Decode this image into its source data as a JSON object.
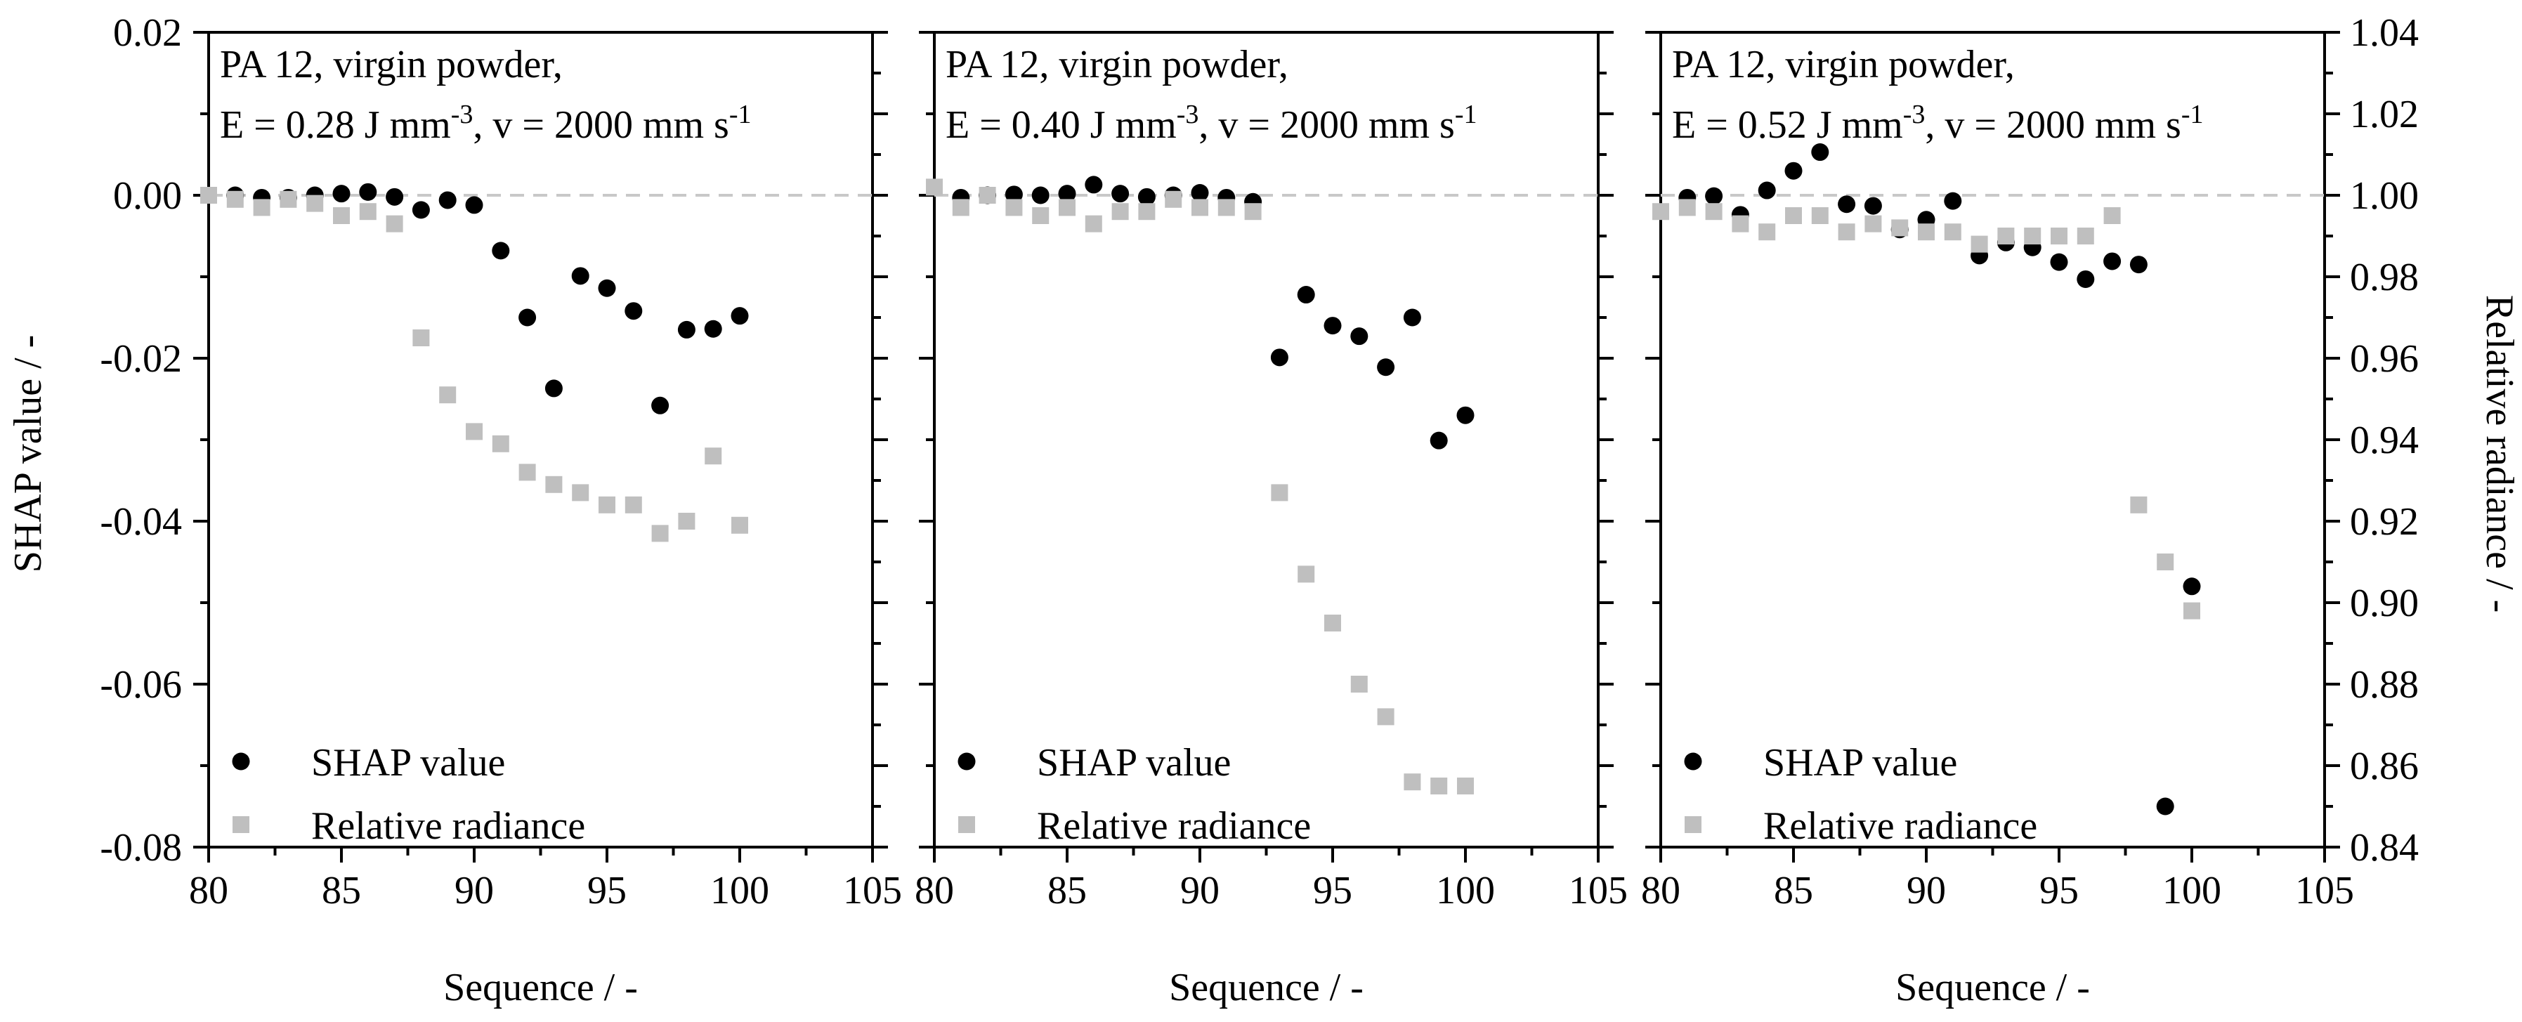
{
  "figure": {
    "ylabel_left": "SHAP value / -",
    "ylabel_right": "Relative radiance / -",
    "legend": {
      "shap": "SHAP value",
      "radiance": "Relative radiance"
    },
    "colors": {
      "shap": "#000000",
      "radiance": "#bfbfbf",
      "reference": "#c8c8c8",
      "axes": "#000000"
    }
  },
  "chart_data": [
    {
      "type": "scatter",
      "ann_line1": "PA 12, virgin powder,",
      "ann_e": "E = 0.28 J mm",
      "ann_e_sup": "-3",
      "ann_v": ", v = 2000 mm s",
      "ann_v_sup": "-1",
      "xlabel": "Sequence / -",
      "xlim": [
        80,
        105
      ],
      "xticks": [
        "80",
        "85",
        "90",
        "95",
        "100",
        "105"
      ],
      "ylim_left": [
        -0.08,
        0.02
      ],
      "ylim_right": [
        0.84,
        1.04
      ],
      "reference_line": 0,
      "series": [
        {
          "name": "SHAP value",
          "axis": "left",
          "marker": "circle",
          "x": [
            81,
            82,
            83,
            84,
            85,
            86,
            87,
            88,
            89,
            90,
            91,
            92,
            93,
            94,
            95,
            96,
            97,
            98,
            99,
            100
          ],
          "y": [
            0.0,
            -0.0003,
            -0.0003,
            0.0,
            0.0002,
            0.0004,
            -0.0002,
            -0.0018,
            -0.0006,
            -0.0012,
            -0.0068,
            -0.015,
            -0.0237,
            -0.0099,
            -0.0114,
            -0.0142,
            -0.0258,
            -0.0165,
            -0.0164,
            -0.0148
          ]
        },
        {
          "name": "Relative radiance",
          "axis": "right",
          "marker": "square",
          "x": [
            80,
            81,
            82,
            83,
            84,
            85,
            86,
            87,
            88,
            89,
            90,
            91,
            92,
            93,
            94,
            95,
            96,
            97,
            98,
            99,
            100
          ],
          "y": [
            1.0,
            0.999,
            0.997,
            0.999,
            0.998,
            0.995,
            0.996,
            0.993,
            0.965,
            0.951,
            0.942,
            0.939,
            0.932,
            0.929,
            0.927,
            0.924,
            0.924,
            0.917,
            0.92,
            0.936,
            0.919
          ]
        }
      ]
    },
    {
      "type": "scatter",
      "ann_line1": "PA 12, virgin powder,",
      "ann_e": "E = 0.40 J mm",
      "ann_e_sup": "-3",
      "ann_v": ", v = 2000 mm s",
      "ann_v_sup": "-1",
      "xlabel": "Sequence / -",
      "xlim": [
        80,
        105
      ],
      "xticks": [
        "80",
        "85",
        "90",
        "95",
        "100",
        "105"
      ],
      "ylim_left": [
        -0.08,
        0.02
      ],
      "ylim_right": [
        0.84,
        1.04
      ],
      "reference_line": 0,
      "series": [
        {
          "name": "SHAP value",
          "axis": "left",
          "marker": "circle",
          "x": [
            81,
            82,
            83,
            84,
            85,
            86,
            87,
            88,
            89,
            90,
            91,
            92,
            93,
            94,
            95,
            96,
            97,
            98,
            99,
            100
          ],
          "y": [
            -0.0003,
            0.0,
            0.0001,
            0.0,
            0.0002,
            0.0013,
            0.0002,
            -0.0002,
            0.0,
            0.0003,
            -0.0003,
            -0.0008,
            -0.0199,
            -0.0122,
            -0.016,
            -0.0173,
            -0.0211,
            -0.015,
            -0.0301,
            -0.027
          ]
        },
        {
          "name": "Relative radiance",
          "axis": "right",
          "marker": "square",
          "x": [
            80,
            81,
            82,
            83,
            84,
            85,
            86,
            87,
            88,
            89,
            90,
            91,
            92,
            93,
            94,
            95,
            96,
            97,
            98,
            99,
            100
          ],
          "y": [
            1.002,
            0.997,
            1.0,
            0.997,
            0.995,
            0.997,
            0.993,
            0.996,
            0.996,
            0.999,
            0.997,
            0.997,
            0.996,
            0.927,
            0.907,
            0.895,
            0.88,
            0.872,
            0.856,
            0.855,
            0.855
          ]
        }
      ]
    },
    {
      "type": "scatter",
      "ann_line1": "PA 12, virgin powder,",
      "ann_e": "E = 0.52 J mm",
      "ann_e_sup": "-3",
      "ann_v": ", v = 2000 mm s",
      "ann_v_sup": "-1",
      "xlabel": "Sequence / -",
      "xlim": [
        80,
        105
      ],
      "xticks": [
        "80",
        "85",
        "90",
        "95",
        "100",
        "105"
      ],
      "ylim_left": [
        -0.08,
        0.02
      ],
      "ylim_right": [
        0.84,
        1.04
      ],
      "reference_line": 0,
      "y_ticks_right": [
        "0.84",
        "0.86",
        "0.88",
        "0.90",
        "0.92",
        "0.94",
        "0.96",
        "0.98",
        "1.00",
        "1.02",
        "1.04"
      ],
      "series": [
        {
          "name": "SHAP value",
          "axis": "left",
          "marker": "circle",
          "x": [
            81,
            82,
            83,
            84,
            85,
            86,
            87,
            88,
            89,
            90,
            91,
            92,
            93,
            94,
            95,
            96,
            97,
            98,
            99,
            100
          ],
          "y": [
            -0.0003,
            -0.0001,
            -0.0024,
            0.0006,
            0.003,
            0.0053,
            -0.0011,
            -0.0013,
            -0.0042,
            -0.003,
            -0.0007,
            -0.0074,
            -0.0058,
            -0.0064,
            -0.0082,
            -0.0103,
            -0.0081,
            -0.0085,
            -0.075,
            -0.048
          ]
        },
        {
          "name": "Relative radiance",
          "axis": "right",
          "marker": "square",
          "x": [
            80,
            81,
            82,
            83,
            84,
            85,
            86,
            87,
            88,
            89,
            90,
            91,
            92,
            93,
            94,
            95,
            96,
            97,
            98,
            99,
            100
          ],
          "y": [
            0.996,
            0.997,
            0.996,
            0.993,
            0.991,
            0.995,
            0.995,
            0.991,
            0.993,
            0.992,
            0.991,
            0.991,
            0.988,
            0.99,
            0.99,
            0.99,
            0.99,
            0.995,
            0.924,
            0.91,
            0.898
          ]
        }
      ]
    }
  ],
  "y_ticks_left": [
    "-0.08",
    "-0.06",
    "-0.04",
    "-0.02",
    "0.00",
    "0.02"
  ]
}
